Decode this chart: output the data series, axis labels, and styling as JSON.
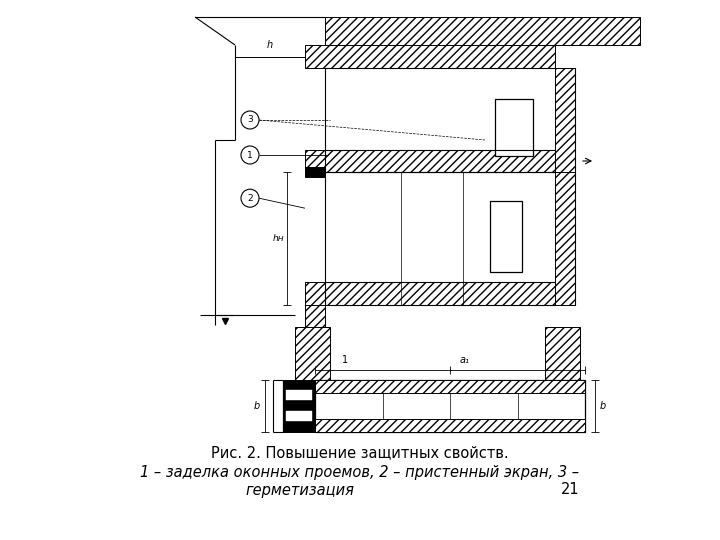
{
  "title_line1": "Рис. 2. Повышение защитных свойств.",
  "title_line2": "1 – заделка оконных проемов, 2 – пристенный экран, 3 –",
  "title_line3": "герметизация",
  "page_number": "21",
  "bg_color": "#ffffff",
  "line_color": "#000000"
}
